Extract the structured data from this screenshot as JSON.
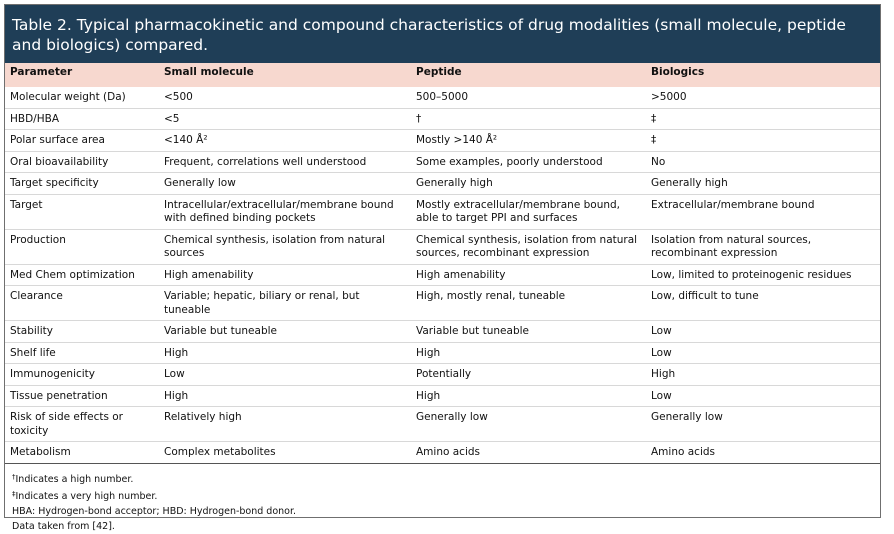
{
  "title": "Table 2.  Typical pharmacokinetic and compound characteristics of drug modalities (small molecule, peptide and biologics) compared.",
  "headers": [
    "Parameter",
    "Small molecule",
    "Peptide",
    "Biologics"
  ],
  "rows": [
    [
      "Molecular weight (Da)",
      "<500",
      "500–5000",
      ">5000"
    ],
    [
      "HBD/HBA",
      "<5",
      "†",
      "‡"
    ],
    [
      "Polar surface area",
      "<140 Å²",
      "Mostly >140 Å²",
      "‡"
    ],
    [
      "Oral bioavailability",
      "Frequent, correlations well understood",
      "Some examples, poorly understood",
      "No"
    ],
    [
      "Target specificity",
      "Generally low",
      "Generally high",
      "Generally high"
    ],
    [
      "Target",
      "Intracellular/extracellular/membrane bound with defined binding pockets",
      "Mostly extracellular/membrane bound, able to target PPI and surfaces",
      "Extracellular/membrane bound"
    ],
    [
      "Production",
      "Chemical synthesis, isolation from natural sources",
      "Chemical synthesis, isolation from natural sources, recombinant expression",
      "Isolation from natural sources, recombinant expression"
    ],
    [
      "Med Chem optimization",
      "High amenability",
      "High amenability",
      "Low, limited to proteinogenic residues"
    ],
    [
      "Clearance",
      "Variable; hepatic, biliary or renal, but tuneable",
      "High, mostly renal, tuneable",
      "Low, difficult to tune"
    ],
    [
      "Stability",
      "Variable but tuneable",
      "Variable but tuneable",
      "Low"
    ],
    [
      "Shelf life",
      "High",
      "High",
      "Low"
    ],
    [
      "Immunogenicity",
      "Low",
      "Potentially",
      "High"
    ],
    [
      "Tissue penetration",
      "High",
      "High",
      "Low"
    ],
    [
      "Risk of side effects or toxicity",
      "Relatively high",
      "Generally low",
      "Generally low"
    ],
    [
      "Metabolism",
      "Complex metabolites",
      "Amino acids",
      "Amino acids"
    ]
  ],
  "footnotes": {
    "dagger_symbol": "†",
    "dagger_text": "Indicates a high number.",
    "ddagger_symbol": "‡",
    "ddagger_text": "Indicates a very high number.",
    "abbreviations": "HBA: Hydrogen-bond acceptor; HBD: Hydrogen-bond donor.",
    "source": "Data taken from [42]."
  }
}
